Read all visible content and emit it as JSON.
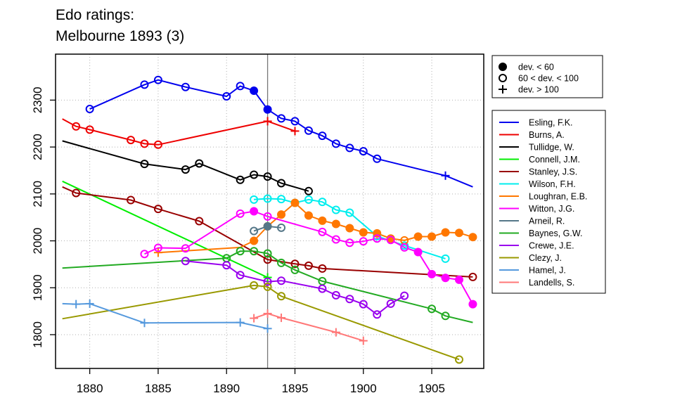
{
  "chart_data": {
    "type": "line",
    "title": [
      "Edo ratings:",
      "Melbourne 1893 (3)"
    ],
    "xlabel": "",
    "ylabel": "",
    "xlim": [
      1877.5,
      1908.8
    ],
    "ylim": [
      1728,
      2398
    ],
    "xticks": [
      1880,
      1885,
      1890,
      1895,
      1900,
      1905
    ],
    "yticks": [
      1800,
      1900,
      2000,
      2100,
      2200,
      2300
    ],
    "grid": true,
    "marker_line_year": 1893,
    "marker_legend": [
      {
        "symbol": "filled",
        "label": "dev. < 60"
      },
      {
        "symbol": "open",
        "label": "60 < dev. < 100"
      },
      {
        "symbol": "plus",
        "label": "dev. > 100"
      }
    ],
    "legend_position": "right",
    "series": [
      {
        "name": "Esling, F.K.",
        "color": "#0000ee",
        "points": [
          [
            1880,
            2281,
            "o"
          ],
          [
            1884,
            2333,
            "o"
          ],
          [
            1885,
            2343,
            "o"
          ],
          [
            1887,
            2328,
            "o"
          ],
          [
            1890,
            2308,
            "o"
          ],
          [
            1891,
            2330,
            "o"
          ],
          [
            1892,
            2320,
            "f"
          ],
          [
            1893,
            2280,
            "f"
          ],
          [
            1894,
            2261,
            "o"
          ],
          [
            1895,
            2255,
            "o"
          ],
          [
            1896,
            2235,
            "o"
          ],
          [
            1897,
            2224,
            "o"
          ],
          [
            1898,
            2207,
            "o"
          ],
          [
            1899,
            2198,
            "o"
          ],
          [
            1900,
            2191,
            "o"
          ],
          [
            1901,
            2175,
            "o"
          ],
          [
            1906,
            2139,
            "p"
          ],
          [
            1908,
            2115,
            null
          ]
        ]
      },
      {
        "name": "Burns, A.",
        "color": "#ee0000",
        "points": [
          [
            1878,
            2260,
            null
          ],
          [
            1879,
            2244,
            "o"
          ],
          [
            1880,
            2237,
            "o"
          ],
          [
            1883,
            2215,
            "o"
          ],
          [
            1884,
            2207,
            "o"
          ],
          [
            1885,
            2205,
            "o"
          ],
          [
            1893,
            2255,
            "p"
          ],
          [
            1895,
            2234,
            "p"
          ]
        ]
      },
      {
        "name": "Tullidge, W.",
        "color": "#000000",
        "points": [
          [
            1878,
            2213,
            null
          ],
          [
            1884,
            2164,
            "o"
          ],
          [
            1887,
            2152,
            "o"
          ],
          [
            1888,
            2165,
            "o"
          ],
          [
            1891,
            2130,
            "o"
          ],
          [
            1892,
            2141,
            "o"
          ],
          [
            1893,
            2137,
            "o"
          ],
          [
            1894,
            2123,
            "o"
          ],
          [
            1896,
            2106,
            "o"
          ]
        ]
      },
      {
        "name": "Connell, J.M.",
        "color": "#00ee00",
        "points": [
          [
            1878,
            2127,
            null
          ],
          [
            1893,
            1922,
            "p"
          ]
        ]
      },
      {
        "name": "Stanley, J.S.",
        "color": "#990000",
        "points": [
          [
            1878,
            2115,
            null
          ],
          [
            1879,
            2102,
            "o"
          ],
          [
            1883,
            2087,
            "o"
          ],
          [
            1885,
            2068,
            "o"
          ],
          [
            1888,
            2042,
            "o"
          ],
          [
            1893,
            1960,
            "o"
          ],
          [
            1895,
            1951,
            "o"
          ],
          [
            1896,
            1947,
            "o"
          ],
          [
            1897,
            1941,
            "o"
          ],
          [
            1908,
            1923,
            "o"
          ]
        ]
      },
      {
        "name": "Wilson, F.H.",
        "color": "#00eeee",
        "points": [
          [
            1892,
            2088,
            "o"
          ],
          [
            1893,
            2090,
            "o"
          ],
          [
            1894,
            2089,
            "o"
          ],
          [
            1895,
            2081,
            "o"
          ],
          [
            1896,
            2088,
            "o"
          ],
          [
            1897,
            2083,
            "o"
          ],
          [
            1898,
            2066,
            "o"
          ],
          [
            1899,
            2060,
            "o"
          ],
          [
            1901,
            2010,
            "o"
          ],
          [
            1903,
            1990,
            "o"
          ],
          [
            1906,
            1962,
            "o"
          ]
        ]
      },
      {
        "name": "Loughran, E.B.",
        "color": "#ff7700",
        "points": [
          [
            1885,
            1975,
            "p"
          ],
          [
            1891,
            1986,
            null
          ],
          [
            1892,
            2000,
            "f"
          ],
          [
            1893,
            2031,
            "f"
          ],
          [
            1894,
            2056,
            "f"
          ],
          [
            1895,
            2081,
            "f"
          ],
          [
            1896,
            2054,
            "f"
          ],
          [
            1897,
            2043,
            "f"
          ],
          [
            1898,
            2036,
            "f"
          ],
          [
            1899,
            2027,
            "f"
          ],
          [
            1900,
            2018,
            "f"
          ],
          [
            1901,
            2016,
            "f"
          ],
          [
            1902,
            2005,
            "f"
          ],
          [
            1903,
            2001,
            "o"
          ],
          [
            1904,
            2009,
            "f"
          ],
          [
            1905,
            2009,
            "f"
          ],
          [
            1906,
            2018,
            "f"
          ],
          [
            1907,
            2017,
            "f"
          ],
          [
            1908,
            2008,
            "f"
          ]
        ]
      },
      {
        "name": "Witton, J.G.",
        "color": "#ff00ff",
        "points": [
          [
            1884,
            1972,
            "o"
          ],
          [
            1885,
            1985,
            "o"
          ],
          [
            1887,
            1984,
            "o"
          ],
          [
            1891,
            2058,
            "o"
          ],
          [
            1892,
            2063,
            "f"
          ],
          [
            1893,
            2052,
            "o"
          ],
          [
            1897,
            2019,
            "o"
          ],
          [
            1898,
            2003,
            "o"
          ],
          [
            1899,
            1996,
            "o"
          ],
          [
            1900,
            1999,
            "o"
          ],
          [
            1901,
            2005,
            "o"
          ],
          [
            1902,
            2002,
            "o"
          ],
          [
            1903,
            1986,
            "o"
          ],
          [
            1904,
            1976,
            "f"
          ],
          [
            1905,
            1929,
            "f"
          ],
          [
            1906,
            1921,
            "f"
          ],
          [
            1907,
            1917,
            "f"
          ],
          [
            1908,
            1865,
            "f"
          ]
        ]
      },
      {
        "name": "Arneil, R.",
        "color": "#557788",
        "points": [
          [
            1892,
            2021,
            "o"
          ],
          [
            1893,
            2031,
            "f"
          ],
          [
            1894,
            2028,
            "o"
          ]
        ]
      },
      {
        "name": "Baynes, G.W.",
        "color": "#22aa22",
        "points": [
          [
            1878,
            1942,
            null
          ],
          [
            1890,
            1963,
            "o"
          ],
          [
            1891,
            1978,
            "o"
          ],
          [
            1892,
            1978,
            "o"
          ],
          [
            1893,
            1973,
            "o"
          ],
          [
            1894,
            1953,
            "o"
          ],
          [
            1895,
            1938,
            "o"
          ],
          [
            1897,
            1914,
            "o"
          ],
          [
            1905,
            1855,
            "o"
          ],
          [
            1906,
            1840,
            "o"
          ],
          [
            1908,
            1826,
            null
          ]
        ]
      },
      {
        "name": "Crewe, J.E.",
        "color": "#9900ee",
        "points": [
          [
            1887,
            1957,
            "o"
          ],
          [
            1890,
            1948,
            "o"
          ],
          [
            1891,
            1927,
            "o"
          ],
          [
            1893,
            1913,
            "o"
          ],
          [
            1894,
            1915,
            "o"
          ],
          [
            1897,
            1898,
            "o"
          ],
          [
            1898,
            1884,
            "o"
          ],
          [
            1899,
            1876,
            "o"
          ],
          [
            1900,
            1865,
            "o"
          ],
          [
            1901,
            1843,
            "o"
          ],
          [
            1902,
            1866,
            "o"
          ],
          [
            1903,
            1883,
            "o"
          ]
        ]
      },
      {
        "name": "Clezy, J.",
        "color": "#999900",
        "points": [
          [
            1878,
            1834,
            null
          ],
          [
            1892,
            1905,
            "o"
          ],
          [
            1893,
            1902,
            "o"
          ],
          [
            1894,
            1882,
            "o"
          ],
          [
            1907,
            1747,
            "o"
          ]
        ]
      },
      {
        "name": "Hamel, J.",
        "color": "#5599dd",
        "points": [
          [
            1878,
            1866,
            null
          ],
          [
            1879,
            1865,
            "p"
          ],
          [
            1880,
            1866,
            "p"
          ],
          [
            1884,
            1825,
            "p"
          ],
          [
            1891,
            1826,
            "p"
          ],
          [
            1893,
            1813,
            "p"
          ]
        ]
      },
      {
        "name": "Landells, S.",
        "color": "#ff7777",
        "points": [
          [
            1892,
            1835,
            "p"
          ],
          [
            1893,
            1845,
            "p"
          ],
          [
            1894,
            1836,
            "p"
          ],
          [
            1898,
            1805,
            "p"
          ],
          [
            1900,
            1787,
            "p"
          ]
        ]
      }
    ]
  }
}
